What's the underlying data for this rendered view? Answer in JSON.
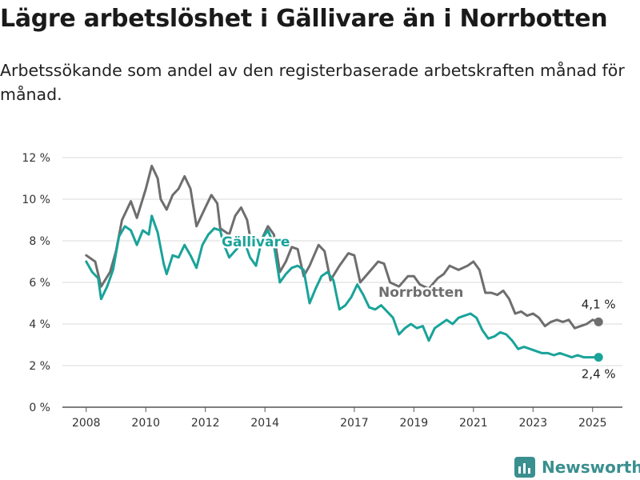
{
  "header": {
    "title": "Lägre arbetslöshet i Gällivare än i Norrbotten",
    "subtitle": "Arbetssökande som andel av den registerbaserade arbetskraften månad för månad."
  },
  "brand": {
    "name": "Newsworthy",
    "icon": "bar-chart-logo-icon",
    "color": "#3a8f8f"
  },
  "chart_data": {
    "type": "line",
    "y_ticks": [
      "12 %",
      "10 %",
      "8 %",
      "6 %",
      "4 %",
      "2 %",
      "0 %"
    ],
    "x_ticks": [
      "2008",
      "2010",
      "2012",
      "2014",
      "2017",
      "2019",
      "2021",
      "2023",
      "2025"
    ],
    "ylim": [
      0,
      12
    ],
    "xlim": [
      2007.2,
      2026.0
    ],
    "grid": true,
    "legend": "inline labels",
    "series": [
      {
        "name": "Norrbotten",
        "color": "#6e6e6e",
        "end_label": "4,1 %",
        "points": [
          [
            2008.0,
            7.3
          ],
          [
            2008.3,
            7.0
          ],
          [
            2008.5,
            5.8
          ],
          [
            2008.8,
            6.5
          ],
          [
            2009.0,
            7.5
          ],
          [
            2009.2,
            9.0
          ],
          [
            2009.5,
            9.9
          ],
          [
            2009.7,
            9.1
          ],
          [
            2010.0,
            10.5
          ],
          [
            2010.2,
            11.6
          ],
          [
            2010.4,
            11.0
          ],
          [
            2010.5,
            10.0
          ],
          [
            2010.7,
            9.5
          ],
          [
            2010.9,
            10.2
          ],
          [
            2011.1,
            10.5
          ],
          [
            2011.3,
            11.1
          ],
          [
            2011.5,
            10.5
          ],
          [
            2011.7,
            8.7
          ],
          [
            2012.0,
            9.6
          ],
          [
            2012.2,
            10.2
          ],
          [
            2012.4,
            9.8
          ],
          [
            2012.5,
            8.6
          ],
          [
            2012.8,
            8.3
          ],
          [
            2013.0,
            9.2
          ],
          [
            2013.2,
            9.6
          ],
          [
            2013.4,
            9.0
          ],
          [
            2013.5,
            8.2
          ],
          [
            2013.7,
            7.8
          ],
          [
            2013.9,
            8.1
          ],
          [
            2014.1,
            8.7
          ],
          [
            2014.3,
            8.3
          ],
          [
            2014.5,
            6.5
          ],
          [
            2014.7,
            7.0
          ],
          [
            2014.9,
            7.7
          ],
          [
            2015.1,
            7.6
          ],
          [
            2015.3,
            6.3
          ],
          [
            2015.5,
            6.8
          ],
          [
            2015.8,
            7.8
          ],
          [
            2016.0,
            7.5
          ],
          [
            2016.2,
            6.1
          ],
          [
            2016.5,
            6.8
          ],
          [
            2016.8,
            7.4
          ],
          [
            2017.0,
            7.3
          ],
          [
            2017.2,
            6.0
          ],
          [
            2017.5,
            6.5
          ],
          [
            2017.8,
            7.0
          ],
          [
            2018.0,
            6.9
          ],
          [
            2018.2,
            6.0
          ],
          [
            2018.5,
            5.8
          ],
          [
            2018.8,
            6.3
          ],
          [
            2019.0,
            6.3
          ],
          [
            2019.2,
            5.9
          ],
          [
            2019.5,
            5.7
          ],
          [
            2019.8,
            6.2
          ],
          [
            2020.0,
            6.4
          ],
          [
            2020.2,
            6.8
          ],
          [
            2020.5,
            6.6
          ],
          [
            2020.8,
            6.8
          ],
          [
            2021.0,
            7.0
          ],
          [
            2021.2,
            6.6
          ],
          [
            2021.4,
            5.5
          ],
          [
            2021.6,
            5.5
          ],
          [
            2021.8,
            5.4
          ],
          [
            2022.0,
            5.6
          ],
          [
            2022.2,
            5.2
          ],
          [
            2022.4,
            4.5
          ],
          [
            2022.6,
            4.6
          ],
          [
            2022.8,
            4.4
          ],
          [
            2023.0,
            4.5
          ],
          [
            2023.2,
            4.3
          ],
          [
            2023.4,
            3.9
          ],
          [
            2023.6,
            4.1
          ],
          [
            2023.8,
            4.2
          ],
          [
            2024.0,
            4.1
          ],
          [
            2024.2,
            4.2
          ],
          [
            2024.4,
            3.8
          ],
          [
            2024.6,
            3.9
          ],
          [
            2024.8,
            4.0
          ],
          [
            2025.0,
            4.2
          ],
          [
            2025.2,
            4.1
          ]
        ]
      },
      {
        "name": "Gällivare",
        "color": "#1aa399",
        "end_label": "2,4 %",
        "points": [
          [
            2008.0,
            7.0
          ],
          [
            2008.2,
            6.5
          ],
          [
            2008.4,
            6.2
          ],
          [
            2008.5,
            5.2
          ],
          [
            2008.7,
            5.8
          ],
          [
            2008.9,
            6.6
          ],
          [
            2009.1,
            8.2
          ],
          [
            2009.3,
            8.7
          ],
          [
            2009.5,
            8.5
          ],
          [
            2009.7,
            7.8
          ],
          [
            2009.9,
            8.5
          ],
          [
            2010.1,
            8.3
          ],
          [
            2010.2,
            9.2
          ],
          [
            2010.4,
            8.4
          ],
          [
            2010.6,
            6.9
          ],
          [
            2010.7,
            6.4
          ],
          [
            2010.9,
            7.3
          ],
          [
            2011.1,
            7.2
          ],
          [
            2011.3,
            7.8
          ],
          [
            2011.5,
            7.3
          ],
          [
            2011.7,
            6.7
          ],
          [
            2011.9,
            7.8
          ],
          [
            2012.1,
            8.3
          ],
          [
            2012.3,
            8.6
          ],
          [
            2012.5,
            8.5
          ],
          [
            2012.6,
            7.9
          ],
          [
            2012.8,
            7.2
          ],
          [
            2013.3,
            8.0
          ],
          [
            2013.5,
            7.2
          ],
          [
            2013.7,
            6.8
          ],
          [
            2013.9,
            8.1
          ],
          [
            2014.1,
            8.5
          ],
          [
            2014.3,
            7.8
          ],
          [
            2014.5,
            6.0
          ],
          [
            2014.7,
            6.4
          ],
          [
            2014.9,
            6.7
          ],
          [
            2015.1,
            6.8
          ],
          [
            2015.3,
            6.6
          ],
          [
            2015.5,
            5.0
          ],
          [
            2015.7,
            5.7
          ],
          [
            2015.9,
            6.3
          ],
          [
            2016.1,
            6.5
          ],
          [
            2016.3,
            6.1
          ],
          [
            2016.5,
            4.7
          ],
          [
            2016.7,
            4.9
          ],
          [
            2016.9,
            5.3
          ],
          [
            2017.1,
            5.9
          ],
          [
            2017.3,
            5.4
          ],
          [
            2017.5,
            4.8
          ],
          [
            2017.7,
            4.7
          ],
          [
            2017.9,
            4.9
          ],
          [
            2018.1,
            4.6
          ],
          [
            2018.3,
            4.3
          ],
          [
            2018.5,
            3.5
          ],
          [
            2018.7,
            3.8
          ],
          [
            2018.9,
            4.0
          ],
          [
            2019.1,
            3.8
          ],
          [
            2019.3,
            3.9
          ],
          [
            2019.5,
            3.2
          ],
          [
            2019.7,
            3.8
          ],
          [
            2019.9,
            4.0
          ],
          [
            2020.1,
            4.2
          ],
          [
            2020.3,
            4.0
          ],
          [
            2020.5,
            4.3
          ],
          [
            2020.7,
            4.4
          ],
          [
            2020.9,
            4.5
          ],
          [
            2021.1,
            4.3
          ],
          [
            2021.3,
            3.7
          ],
          [
            2021.5,
            3.3
          ],
          [
            2021.7,
            3.4
          ],
          [
            2021.9,
            3.6
          ],
          [
            2022.1,
            3.5
          ],
          [
            2022.3,
            3.2
          ],
          [
            2022.5,
            2.8
          ],
          [
            2022.7,
            2.9
          ],
          [
            2022.9,
            2.8
          ],
          [
            2023.1,
            2.7
          ],
          [
            2023.3,
            2.6
          ],
          [
            2023.5,
            2.6
          ],
          [
            2023.7,
            2.5
          ],
          [
            2023.9,
            2.6
          ],
          [
            2024.1,
            2.5
          ],
          [
            2024.3,
            2.4
          ],
          [
            2024.5,
            2.5
          ],
          [
            2024.7,
            2.4
          ],
          [
            2024.9,
            2.4
          ],
          [
            2025.2,
            2.4
          ]
        ]
      }
    ]
  }
}
